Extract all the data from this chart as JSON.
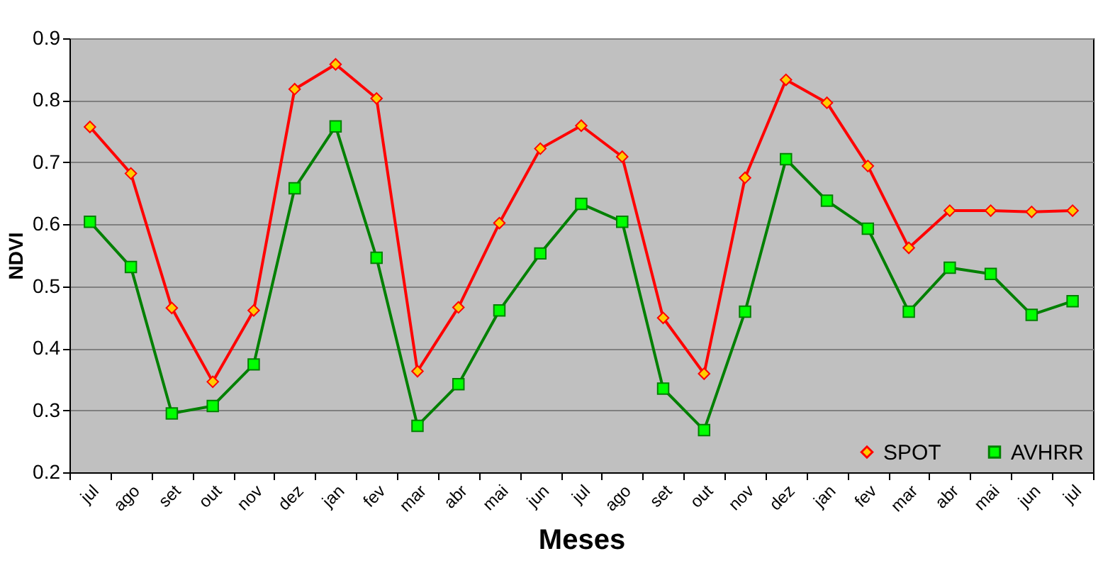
{
  "chart_data": {
    "type": "line",
    "xlabel": "Meses",
    "ylabel": "NDVI",
    "categories": [
      "jul",
      "ago",
      "set",
      "out",
      "nov",
      "dez",
      "jan",
      "fev",
      "mar",
      "abr",
      "mai",
      "jun",
      "jul",
      "ago",
      "set",
      "out",
      "nov",
      "dez",
      "jan",
      "fev",
      "mar",
      "abr",
      "mai",
      "jun",
      "jul"
    ],
    "series": [
      {
        "name": "SPOT",
        "color": "#ff0000",
        "marker": "diamond",
        "values": [
          0.757,
          0.682,
          0.465,
          0.346,
          0.461,
          0.818,
          0.858,
          0.803,
          0.363,
          0.466,
          0.602,
          0.722,
          0.759,
          0.709,
          0.449,
          0.359,
          0.675,
          0.833,
          0.796,
          0.694,
          0.562,
          0.622,
          0.622,
          0.62,
          0.622
        ]
      },
      {
        "name": "AVHRR",
        "color": "#008000",
        "marker": "square",
        "values": [
          0.604,
          0.531,
          0.295,
          0.307,
          0.374,
          0.658,
          0.758,
          0.546,
          0.275,
          0.342,
          0.461,
          0.553,
          0.633,
          0.604,
          0.335,
          0.268,
          0.459,
          0.705,
          0.638,
          0.593,
          0.459,
          0.53,
          0.52,
          0.454,
          0.476
        ]
      }
    ],
    "ylim": [
      0.2,
      0.9
    ],
    "yticks": [
      0.2,
      0.3,
      0.4,
      0.5,
      0.6,
      0.7,
      0.8,
      0.9
    ],
    "grid": "y",
    "legend": "bottom right",
    "line_style": "solid"
  }
}
